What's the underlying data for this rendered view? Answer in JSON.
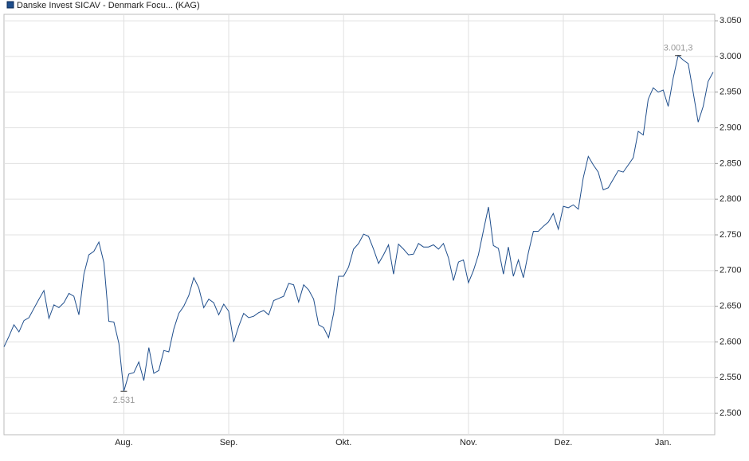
{
  "chart_data": {
    "type": "line",
    "series": [
      {
        "name": "Danske Invest SICAV - Denmark Focu... (KAG)",
        "color": "#1f4e8c",
        "values": [
          2593,
          2608,
          2624,
          2614,
          2630,
          2634,
          2647,
          2660,
          2672,
          2633,
          2652,
          2648,
          2655,
          2668,
          2664,
          2638,
          2695,
          2722,
          2727,
          2740,
          2711,
          2629,
          2628,
          2598,
          2531,
          2555,
          2557,
          2572,
          2546,
          2592,
          2556,
          2560,
          2588,
          2586,
          2618,
          2640,
          2650,
          2665,
          2690,
          2676,
          2648,
          2660,
          2655,
          2638,
          2653,
          2643,
          2600,
          2622,
          2640,
          2634,
          2636,
          2641,
          2644,
          2638,
          2658,
          2661,
          2664,
          2682,
          2680,
          2656,
          2680,
          2673,
          2660,
          2624,
          2620,
          2606,
          2640,
          2692,
          2692,
          2705,
          2730,
          2738,
          2751,
          2748,
          2730,
          2710,
          2722,
          2736,
          2695,
          2737,
          2730,
          2722,
          2723,
          2738,
          2733,
          2733,
          2736,
          2730,
          2738,
          2718,
          2686,
          2712,
          2715,
          2683,
          2700,
          2722,
          2756,
          2789,
          2735,
          2731,
          2695,
          2733,
          2692,
          2715,
          2690,
          2725,
          2755,
          2755,
          2762,
          2768,
          2780,
          2758,
          2790,
          2788,
          2792,
          2786,
          2830,
          2860,
          2848,
          2838,
          2813,
          2816,
          2828,
          2840,
          2838,
          2848,
          2858,
          2895,
          2890,
          2940,
          2956,
          2950,
          2953,
          2930,
          2970,
          3001.3,
          2995,
          2990,
          2950,
          2908,
          2930,
          2965,
          2978
        ]
      }
    ],
    "categories": [
      null,
      null,
      null,
      null,
      null,
      null,
      null,
      null,
      null,
      null,
      null,
      null,
      null,
      null,
      null,
      null,
      null,
      null,
      null,
      null,
      null,
      null,
      null,
      null,
      "Aug.",
      null,
      null,
      null,
      null,
      null,
      null,
      null,
      null,
      null,
      null,
      null,
      null,
      null,
      null,
      null,
      null,
      null,
      null,
      null,
      null,
      "Sep.",
      null,
      null,
      null,
      null,
      null,
      null,
      null,
      null,
      null,
      null,
      null,
      null,
      null,
      null,
      null,
      null,
      null,
      null,
      null,
      null,
      null,
      null,
      "Okt.",
      null,
      null,
      null,
      null,
      null,
      null,
      null,
      null,
      null,
      null,
      null,
      null,
      null,
      null,
      null,
      null,
      null,
      null,
      null,
      null,
      null,
      null,
      null,
      null,
      "Nov.",
      null,
      null,
      null,
      null,
      null,
      null,
      null,
      null,
      null,
      null,
      null,
      null,
      null,
      null,
      null,
      null,
      null,
      null,
      "Dez.",
      null,
      null,
      null,
      null,
      null,
      null,
      null,
      null,
      null,
      null,
      null,
      null,
      null,
      null,
      null,
      null,
      null,
      null,
      null,
      "Jan.",
      null,
      null,
      null,
      null,
      null,
      null,
      null,
      null,
      null,
      null
    ],
    "max_label": "3.001,3",
    "min_label": "2.531",
    "ylim": [
      2470,
      3059
    ],
    "yticks": [
      {
        "value": 2500,
        "label": "2.500"
      },
      {
        "value": 2550,
        "label": "2.550"
      },
      {
        "value": 2600,
        "label": "2.600"
      },
      {
        "value": 2650,
        "label": "2.650"
      },
      {
        "value": 2700,
        "label": "2.700"
      },
      {
        "value": 2750,
        "label": "2.750"
      },
      {
        "value": 2800,
        "label": "2.800"
      },
      {
        "value": 2850,
        "label": "2.850"
      },
      {
        "value": 2900,
        "label": "2.900"
      },
      {
        "value": 2950,
        "label": "2.950"
      },
      {
        "value": 3000,
        "label": "3.000"
      },
      {
        "value": 3050,
        "label": "3.050"
      }
    ],
    "grid": true
  }
}
